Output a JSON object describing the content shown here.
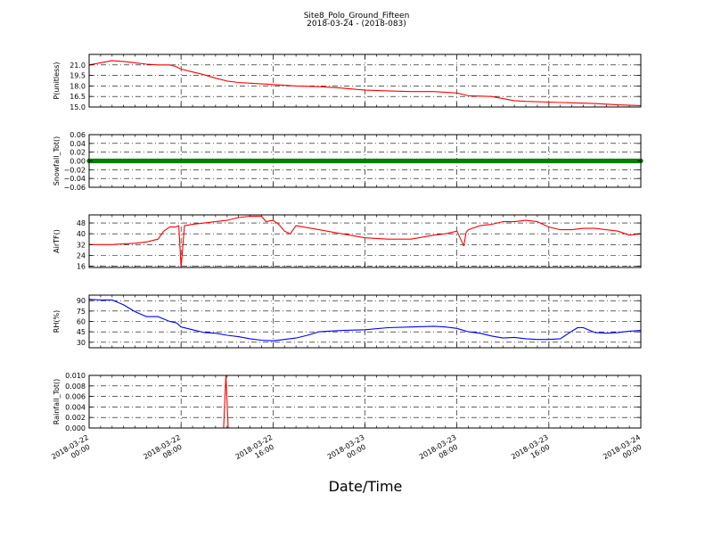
{
  "title": "Site8_Polo_Ground_Fifteen",
  "subtitle": "2018-03-24 - (2018-083)",
  "xlabel": "Date/Time",
  "x_ticks": [
    {
      "t": 0,
      "line1": "2018-03-22",
      "line2": "00:00"
    },
    {
      "t": 8,
      "line1": "2018-03-22",
      "line2": "08:00"
    },
    {
      "t": 16,
      "line1": "2018-03-22",
      "line2": "16:00"
    },
    {
      "t": 24,
      "line1": "2018-03-23",
      "line2": "00:00"
    },
    {
      "t": 32,
      "line1": "2018-03-23",
      "line2": "08:00"
    },
    {
      "t": 40,
      "line1": "2018-03-23",
      "line2": "16:00"
    },
    {
      "t": 48,
      "line1": "2018-03-24",
      "line2": "00:00"
    }
  ],
  "chart_data": [
    {
      "type": "line",
      "ylabel": "P(unitless)",
      "color": "#ff0000",
      "ylim": [
        15.0,
        22.5
      ],
      "yticks": [
        15.0,
        16.5,
        18.0,
        19.5,
        21.0
      ],
      "ytick_labels": [
        "15.0",
        "16.5",
        "18.0",
        "19.5",
        "21.0"
      ],
      "x_hours": [
        0,
        1,
        2,
        3,
        4,
        5,
        6,
        7,
        7.5,
        8,
        9,
        10,
        11,
        12,
        13,
        14,
        16,
        18,
        20,
        22,
        24,
        26,
        28,
        30,
        32,
        33,
        35,
        36,
        37,
        38,
        40,
        42,
        44,
        46,
        48
      ],
      "y": [
        21.0,
        21.3,
        21.6,
        21.5,
        21.3,
        21.1,
        21.0,
        21.0,
        20.8,
        20.4,
        20.0,
        19.6,
        19.1,
        18.7,
        18.5,
        18.4,
        18.2,
        18.0,
        17.9,
        17.7,
        17.4,
        17.3,
        17.2,
        17.2,
        17.0,
        16.6,
        16.5,
        16.2,
        15.9,
        15.8,
        15.7,
        15.6,
        15.5,
        15.3,
        15.2
      ]
    },
    {
      "type": "scatter",
      "ylabel": "Snowfall_Tot()",
      "color": "#008000",
      "ylim": [
        -0.06,
        0.06
      ],
      "yticks": [
        -0.06,
        -0.04,
        -0.02,
        0.0,
        0.02,
        0.04,
        0.06
      ],
      "ytick_labels": [
        "−0.06",
        "−0.04",
        "−0.02",
        "0.00",
        "0.02",
        "0.04",
        "0.06"
      ],
      "x_range_hours": [
        0,
        48
      ],
      "value": 0.0
    },
    {
      "type": "line",
      "ylabel": "AirTF()",
      "color": "#ff0000",
      "ylim": [
        15,
        54
      ],
      "yticks": [
        16,
        24,
        32,
        40,
        48
      ],
      "ytick_labels": [
        "16",
        "24",
        "32",
        "40",
        "48"
      ],
      "x_hours": [
        0,
        2,
        4,
        5,
        6,
        6.5,
        7,
        7.5,
        7.8,
        8,
        8.3,
        9,
        10,
        11,
        12,
        13,
        14,
        15,
        15.4,
        16,
        16.5,
        17,
        17.5,
        18,
        20,
        22,
        24,
        26,
        28,
        30,
        31,
        32,
        32.6,
        32.8,
        33,
        34,
        35,
        36,
        37,
        38,
        39,
        40,
        41,
        42,
        43,
        44,
        46,
        47,
        48
      ],
      "y": [
        32,
        32,
        33,
        34,
        36,
        42,
        45,
        45,
        46,
        15,
        46,
        47,
        48,
        49,
        50,
        52,
        53,
        53,
        49,
        50,
        47,
        42,
        40,
        46,
        43,
        40,
        37,
        36,
        36,
        39,
        40,
        42,
        31,
        41,
        43,
        46,
        47,
        49,
        49,
        50,
        49,
        45,
        43,
        43,
        44,
        44,
        42,
        39,
        40
      ]
    },
    {
      "type": "line",
      "ylabel": "RH(%)",
      "color": "#0000ff",
      "ylim": [
        22,
        98
      ],
      "yticks": [
        30,
        45,
        60,
        75,
        90
      ],
      "ytick_labels": [
        "30",
        "45",
        "60",
        "75",
        "90"
      ],
      "x_hours": [
        0,
        1,
        2,
        3,
        4,
        5,
        6,
        7,
        7.6,
        8,
        9,
        10,
        11,
        12,
        13,
        14,
        15,
        16,
        17,
        18,
        19,
        20,
        22,
        24,
        26,
        28,
        30,
        31,
        32,
        33,
        34,
        35,
        36,
        37,
        38,
        39,
        40,
        41,
        42,
        42.5,
        43,
        44,
        45,
        46,
        47,
        48
      ],
      "y": [
        92,
        91,
        91,
        84,
        74,
        67,
        67,
        60,
        58,
        52,
        48,
        44,
        43,
        40,
        38,
        35,
        33,
        32,
        34,
        36,
        40,
        45,
        47,
        48,
        51,
        52,
        53,
        52,
        50,
        45,
        43,
        39,
        36,
        37,
        35,
        34,
        34,
        35,
        46,
        51,
        51,
        44,
        43,
        44,
        46,
        47
      ]
    },
    {
      "type": "line",
      "ylabel": "Rainfall_Tot()",
      "color": "#ff0000",
      "ylim": [
        0.0,
        0.01
      ],
      "yticks": [
        0.0,
        0.002,
        0.004,
        0.006,
        0.008,
        0.01
      ],
      "ytick_labels": [
        "0.000",
        "0.002",
        "0.004",
        "0.006",
        "0.008",
        "0.010"
      ],
      "x_hours": [
        0,
        11.7,
        11.9,
        12.1,
        48
      ],
      "y": [
        0.0,
        0.0,
        0.01,
        0.0,
        0.0
      ]
    }
  ]
}
